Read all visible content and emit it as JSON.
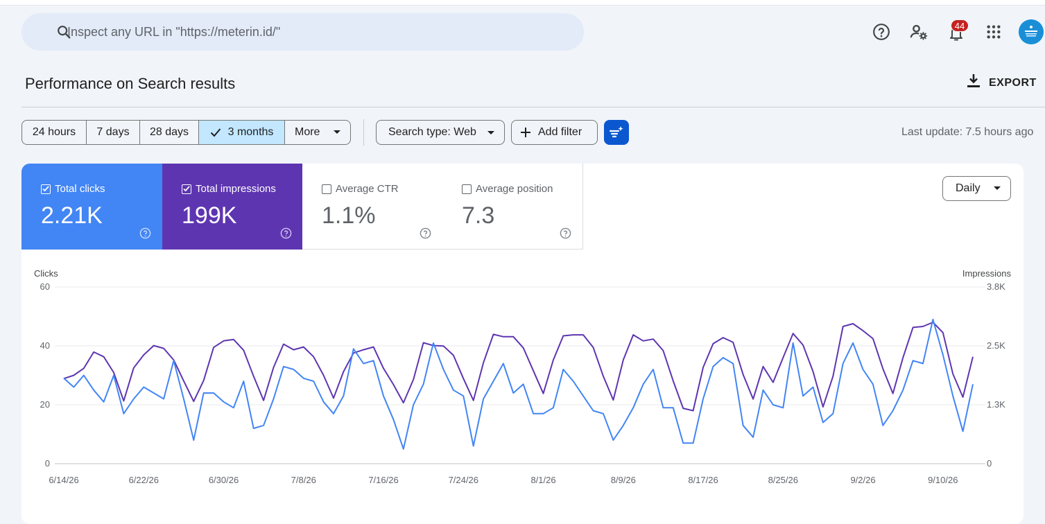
{
  "search": {
    "placeholder": "Inspect any URL in \"https://meterin.id/\""
  },
  "header_icons": [
    "help-icon",
    "manage-users-icon",
    "notifications-icon",
    "apps-grid-icon"
  ],
  "notifications": {
    "count": "44"
  },
  "page": {
    "title": "Performance on Search results",
    "export_label": "EXPORT"
  },
  "date_ranges": [
    {
      "label": "24 hours",
      "active": false
    },
    {
      "label": "7 days",
      "active": false
    },
    {
      "label": "28 days",
      "active": false
    },
    {
      "label": "3 months",
      "active": true
    },
    {
      "label": "More",
      "active": false
    }
  ],
  "filters": {
    "search_type": "Search type: Web",
    "add_filter": "Add filter"
  },
  "last_update": "Last update: 7.5 hours ago",
  "metrics": [
    {
      "label": "Total clicks",
      "value": "2.21K",
      "checked": true,
      "color": "#4285f4"
    },
    {
      "label": "Total impressions",
      "value": "199K",
      "checked": true,
      "color": "#5e35b1"
    },
    {
      "label": "Average CTR",
      "value": "1.1%",
      "checked": false
    },
    {
      "label": "Average position",
      "value": "7.3",
      "checked": false
    }
  ],
  "granularity": "Daily",
  "chart_data": {
    "type": "line",
    "left_axis": {
      "title": "Clicks",
      "ticks": [
        "0",
        "20",
        "40",
        "60"
      ],
      "range": [
        0,
        60
      ]
    },
    "right_axis": {
      "title": "Impressions",
      "ticks": [
        "0",
        "1.3K",
        "2.5K",
        "3.8K"
      ],
      "range": [
        0,
        3800
      ]
    },
    "x_tick_labels": [
      "6/14/26",
      "6/22/26",
      "6/30/26",
      "7/8/26",
      "7/16/26",
      "7/24/26",
      "8/1/26",
      "8/9/26",
      "8/17/26",
      "8/25/26",
      "9/2/26",
      "9/10/26"
    ],
    "x_tick_indices": [
      0,
      8,
      16,
      24,
      32,
      40,
      48,
      56,
      64,
      72,
      80,
      88
    ],
    "grid": true,
    "series": [
      {
        "name": "Clicks",
        "axis": "left",
        "color": "#4285f4",
        "values": [
          29,
          26,
          30,
          25,
          21,
          30,
          17,
          22,
          26,
          24,
          22,
          35,
          22,
          8,
          24,
          24,
          21,
          19,
          28,
          12,
          13,
          22,
          33,
          32,
          29,
          28,
          21,
          17,
          23,
          39,
          34,
          35,
          23,
          15,
          5,
          20,
          27,
          41,
          32,
          25,
          23,
          6,
          22,
          28,
          34,
          24,
          27,
          17,
          17,
          19,
          32,
          28,
          23,
          18,
          17,
          8,
          13,
          19,
          27,
          32,
          19,
          19,
          7,
          7,
          22,
          33,
          36,
          34,
          13,
          9,
          25,
          20,
          19,
          41,
          23,
          26,
          14,
          17,
          34,
          41,
          32,
          27,
          13,
          18,
          25,
          35,
          34,
          49,
          37,
          23,
          11,
          27
        ]
      },
      {
        "name": "Impressions",
        "axis": "right",
        "color": "#5e35b1",
        "values": [
          1830,
          1900,
          2050,
          2400,
          2300,
          1960,
          1350,
          2060,
          2340,
          2540,
          2480,
          2230,
          1780,
          1340,
          1790,
          2500,
          2640,
          2670,
          2440,
          1880,
          1360,
          2070,
          2570,
          2450,
          2510,
          2300,
          1900,
          1410,
          1980,
          2380,
          2450,
          2510,
          2050,
          1700,
          1310,
          1810,
          2600,
          2540,
          2530,
          2330,
          1830,
          1360,
          2170,
          2780,
          2730,
          2730,
          2490,
          2000,
          1510,
          2230,
          2750,
          2770,
          2770,
          2500,
          1880,
          1370,
          2230,
          2770,
          2640,
          2680,
          2430,
          1780,
          1190,
          1140,
          2070,
          2580,
          2710,
          2610,
          1920,
          1390,
          2090,
          1750,
          2280,
          2800,
          2550,
          1980,
          1220,
          1880,
          2950,
          3010,
          2860,
          2690,
          2040,
          1510,
          2280,
          2930,
          2950,
          3040,
          2820,
          1930,
          1430,
          2300
        ]
      }
    ]
  }
}
